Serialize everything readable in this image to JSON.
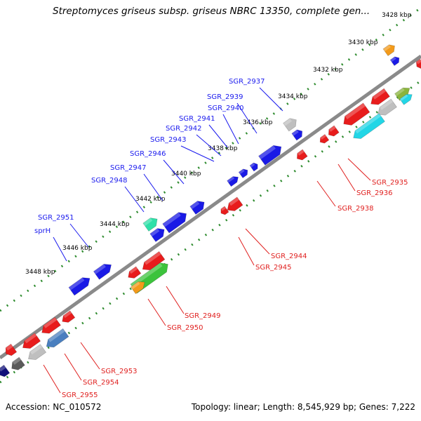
{
  "title": "Streptomyces griseus subsp. griseus NBRC 13350, complete gen...",
  "footer": {
    "accession": "Accession: NC_010572",
    "summary": "Topology: linear; Length: 8,545,929 bp; Genes: 7,222"
  },
  "colors": {
    "backbone": "#8a8a8a",
    "tick_dots": "#2e8b2e",
    "tick_text": "#000000",
    "top_labels": "#1a1aee",
    "bottom_labels": "#e0201f",
    "gene_blue": "#1a1ae6",
    "gene_red": "#e81c1c",
    "gene_gray": "#bfbfbf",
    "gene_green": "#3cc33c",
    "gene_orange": "#f39a1a",
    "gene_teal": "#2ee0a8",
    "gene_cyan": "#22d6e6",
    "gene_steel": "#4a7fbf",
    "gene_olive": "#8ab43c",
    "gene_dark_gray": "#5a5a5a",
    "gene_navy": "#10107a"
  },
  "ticks": [
    "3428 kbp",
    "3430 kbp",
    "3432 kbp",
    "3434 kbp",
    "3436 kbp",
    "3438 kbp",
    "3440 kbp",
    "3442 kbp",
    "3444 kbp",
    "3446 kbp",
    "3448 kbp"
  ],
  "top_labels": [
    "SGR_2937",
    "SGR_2939",
    "SGR_2940",
    "SGR_2941",
    "SGR_2942",
    "SGR_2943",
    "SGR_2946",
    "SGR_2947",
    "SGR_2948",
    "SGR_2951",
    "sprH"
  ],
  "bottom_labels": [
    "SGR_2935",
    "SGR_2936",
    "SGR_2938",
    "SGR_2944",
    "SGR_2945",
    "SGR_2949",
    "SGR_2950",
    "SGR_2953",
    "SGR_2954",
    "SGR_2955"
  ]
}
